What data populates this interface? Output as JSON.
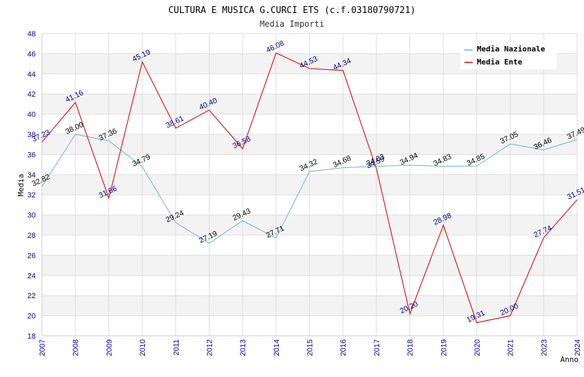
{
  "chart_data": {
    "type": "line",
    "title": "CULTURA E MUSICA G.CURCI ETS (c.f.03180790721)",
    "subtitle": "Media Importi",
    "xlabel": "Anno",
    "ylabel": "Media",
    "ylim": [
      18,
      48
    ],
    "yticks": [
      "18",
      "20",
      "22",
      "24",
      "26",
      "28",
      "30",
      "32",
      "34",
      "36",
      "38",
      "40",
      "42",
      "44",
      "46",
      "48"
    ],
    "categories": [
      "2007",
      "2008",
      "2009",
      "2010",
      "2011",
      "2012",
      "2013",
      "2014",
      "2015",
      "2016",
      "2017",
      "2018",
      "2019",
      "2020",
      "2021",
      "2023",
      "2024"
    ],
    "grid": true,
    "legend_position": "top-right",
    "series": [
      {
        "name": "Media Nazionale",
        "color": "#6aaee6",
        "label_color": "#000000",
        "values": [
          32.82,
          38.0,
          37.36,
          34.79,
          29.24,
          27.19,
          29.43,
          27.71,
          34.32,
          34.68,
          34.83,
          34.94,
          34.83,
          34.85,
          37.05,
          36.46,
          37.49
        ],
        "labels": [
          "32.82",
          "38.00",
          "37.36",
          "34.79",
          "29.24",
          "27.19",
          "29.43",
          "27.71",
          "34.32",
          "34.68",
          "34.83",
          "34.94",
          "34.83",
          "34.85",
          "37.05",
          "36.46",
          "37.49"
        ]
      },
      {
        "name": "Media Ente",
        "color": "#e60000",
        "label_color": "#00008b",
        "values": [
          37.23,
          41.16,
          31.66,
          45.19,
          38.61,
          40.4,
          36.58,
          46.08,
          44.53,
          44.34,
          34.59,
          20.2,
          28.98,
          19.31,
          20.0,
          27.74,
          31.51
        ],
        "labels": [
          "37.23",
          "41.16",
          "31.66",
          "45.19",
          "38.61",
          "40.40",
          "36.58",
          "46.08",
          "44.53",
          "44.34",
          "34.59",
          "20.20",
          "28.98",
          "19.31",
          "20.00",
          "27.74",
          "31.51"
        ]
      }
    ]
  }
}
